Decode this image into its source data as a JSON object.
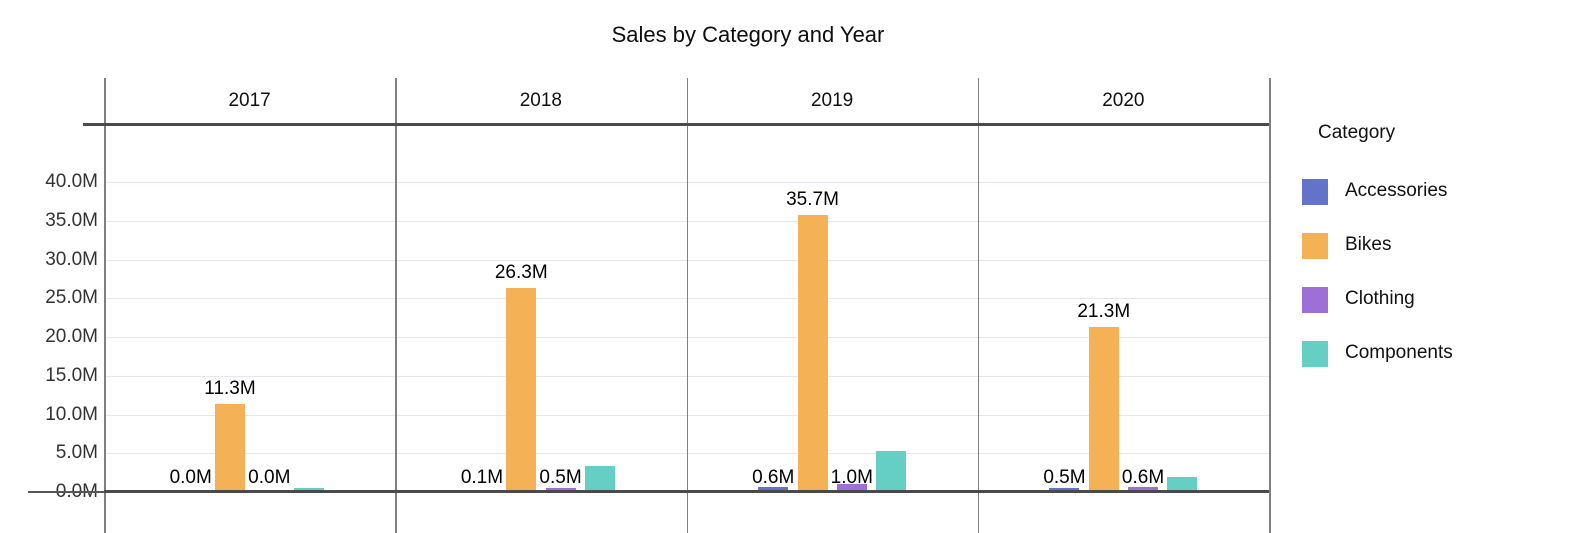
{
  "title": "Sales by Category and Year",
  "legend": {
    "title": "Category",
    "items": [
      {
        "label": "Accessories",
        "color": "#6373C9"
      },
      {
        "label": "Bikes",
        "color": "#F4B156"
      },
      {
        "label": "Clothing",
        "color": "#9F6FD8"
      },
      {
        "label": "Components",
        "color": "#65CFC6"
      }
    ]
  },
  "yaxis": {
    "tick_labels": [
      "0.0M",
      "5.0M",
      "10.0M",
      "15.0M",
      "20.0M",
      "25.0M",
      "30.0M",
      "35.0M",
      "40.0M"
    ],
    "tick_values": [
      0,
      5,
      10,
      15,
      20,
      25,
      30,
      35,
      40
    ],
    "units": "M"
  },
  "chart_data": {
    "type": "bar",
    "title": "Sales by Category and Year",
    "facet_by": "Year",
    "categories": [
      "2017",
      "2018",
      "2019",
      "2020"
    ],
    "series": [
      {
        "name": "Accessories",
        "color": "#6373C9",
        "values": [
          0.0,
          0.1,
          0.6,
          0.5
        ],
        "labels": [
          "0.0M",
          "0.1M",
          "0.6M",
          "0.5M"
        ]
      },
      {
        "name": "Bikes",
        "color": "#F4B156",
        "values": [
          11.3,
          26.3,
          35.7,
          21.3
        ],
        "labels": [
          "11.3M",
          "26.3M",
          "35.7M",
          "21.3M"
        ]
      },
      {
        "name": "Clothing",
        "color": "#9F6FD8",
        "values": [
          0.0,
          0.5,
          1.0,
          0.6
        ],
        "labels": [
          "0.0M",
          "0.5M",
          "1.0M",
          "0.6M"
        ]
      },
      {
        "name": "Components",
        "color": "#65CFC6",
        "values": [
          0.5,
          3.3,
          5.3,
          1.9
        ],
        "labels": [
          null,
          null,
          null,
          null
        ]
      }
    ],
    "xlabel": "",
    "ylabel": "",
    "ylim": [
      0,
      47.5
    ],
    "grid": true,
    "legend_position": "right",
    "legend_title": "Category"
  }
}
